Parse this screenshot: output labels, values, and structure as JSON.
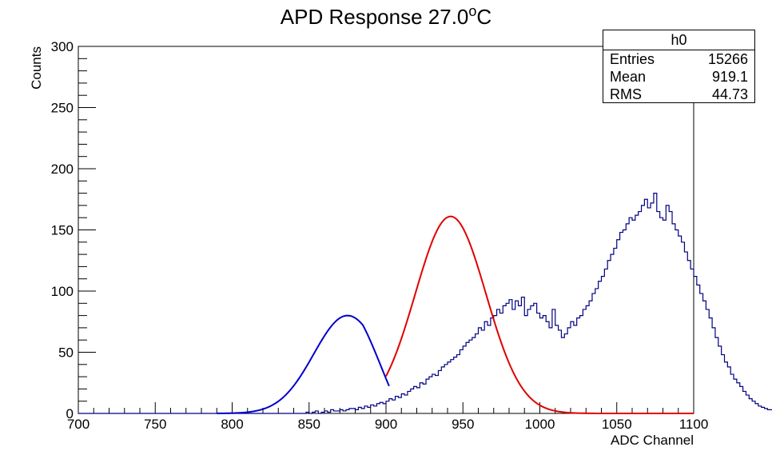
{
  "chart_data": {
    "type": "histogram",
    "title_main": "APD Response 27.0",
    "title_sup": "o",
    "title_tail": "C",
    "xlabel": "ADC Channel",
    "ylabel": "Counts",
    "xlim": [
      700,
      1100
    ],
    "ylim": [
      0,
      300
    ],
    "x_ticks": [
      700,
      750,
      800,
      850,
      900,
      950,
      1000,
      1050,
      1100
    ],
    "y_ticks": [
      0,
      50,
      100,
      150,
      200,
      250,
      300
    ],
    "histogram": {
      "bin_width": 2,
      "start": 700,
      "color": "#000080",
      "values": [
        0,
        0,
        0,
        0,
        0,
        0,
        0,
        0,
        0,
        0,
        0,
        0,
        0,
        0,
        0,
        0,
        0,
        0,
        0,
        0,
        0,
        0,
        0,
        0,
        0,
        0,
        0,
        0,
        0,
        0,
        0,
        0,
        0,
        0,
        0,
        0,
        0,
        0,
        0,
        0,
        0,
        0,
        0,
        0,
        0,
        0,
        0,
        0,
        0,
        0,
        0,
        0,
        0,
        0,
        0,
        0,
        0,
        0,
        0,
        0,
        0,
        0,
        0,
        0,
        0,
        0,
        0,
        0,
        0,
        0,
        0,
        0,
        0,
        0,
        1,
        0,
        1,
        2,
        0,
        1,
        2,
        1,
        3,
        2,
        2,
        3,
        2,
        3,
        4,
        4,
        3,
        5,
        4,
        6,
        5,
        7,
        6,
        8,
        9,
        8,
        10,
        12,
        11,
        14,
        13,
        16,
        15,
        18,
        20,
        22,
        21,
        25,
        24,
        28,
        30,
        32,
        31,
        35,
        38,
        40,
        42,
        44,
        46,
        48,
        52,
        55,
        58,
        60,
        62,
        65,
        70,
        68,
        75,
        72,
        78,
        80,
        85,
        82,
        88,
        90,
        93,
        85,
        92,
        88,
        95,
        80,
        85,
        88,
        90,
        82,
        78,
        80,
        75,
        70,
        85,
        72,
        68,
        62,
        65,
        70,
        75,
        72,
        78,
        80,
        85,
        88,
        92,
        98,
        102,
        108,
        112,
        118,
        125,
        130,
        135,
        142,
        148,
        150,
        155,
        160,
        158,
        162,
        165,
        170,
        175,
        168,
        172,
        180,
        165,
        160,
        158,
        170,
        165,
        155,
        150,
        145,
        140,
        132,
        125,
        118,
        112,
        105,
        98,
        92,
        85,
        78,
        70,
        62,
        55,
        48,
        42,
        38,
        32,
        28,
        25,
        22,
        18,
        15,
        12,
        10,
        8,
        6,
        5,
        4,
        3,
        3,
        2,
        2,
        1,
        1,
        1,
        0,
        1,
        0,
        0,
        0,
        0,
        0,
        0,
        0,
        0,
        0,
        0,
        0,
        0,
        0,
        0,
        0,
        0,
        0,
        0,
        0,
        0,
        0,
        0,
        0,
        0,
        0,
        0,
        0,
        0,
        0,
        0,
        0,
        0,
        0,
        0,
        0,
        0,
        0,
        0,
        0,
        0,
        0,
        0,
        0,
        0,
        0,
        0,
        0,
        0,
        0,
        0,
        0
      ]
    },
    "fits": [
      {
        "name": "fit-blue",
        "color": "#0000cc",
        "x_from": 790,
        "x_to": 902,
        "gaussians": [
          {
            "amp": 80,
            "mean": 875,
            "sigma": 22
          },
          {
            "amp": 0,
            "mean": 0,
            "sigma": 1
          }
        ]
      },
      {
        "name": "fit-red",
        "color": "#e00000",
        "x_from": 900,
        "x_to": 1100,
        "gaussians": [
          {
            "amp": 161,
            "mean": 942,
            "sigma": 23
          }
        ]
      }
    ]
  },
  "stats": {
    "name": "h0",
    "rows": [
      {
        "label": "Entries",
        "value": "15266"
      },
      {
        "label": "Mean",
        "value": "919.1"
      },
      {
        "label": "RMS",
        "value": "44.73"
      }
    ]
  }
}
